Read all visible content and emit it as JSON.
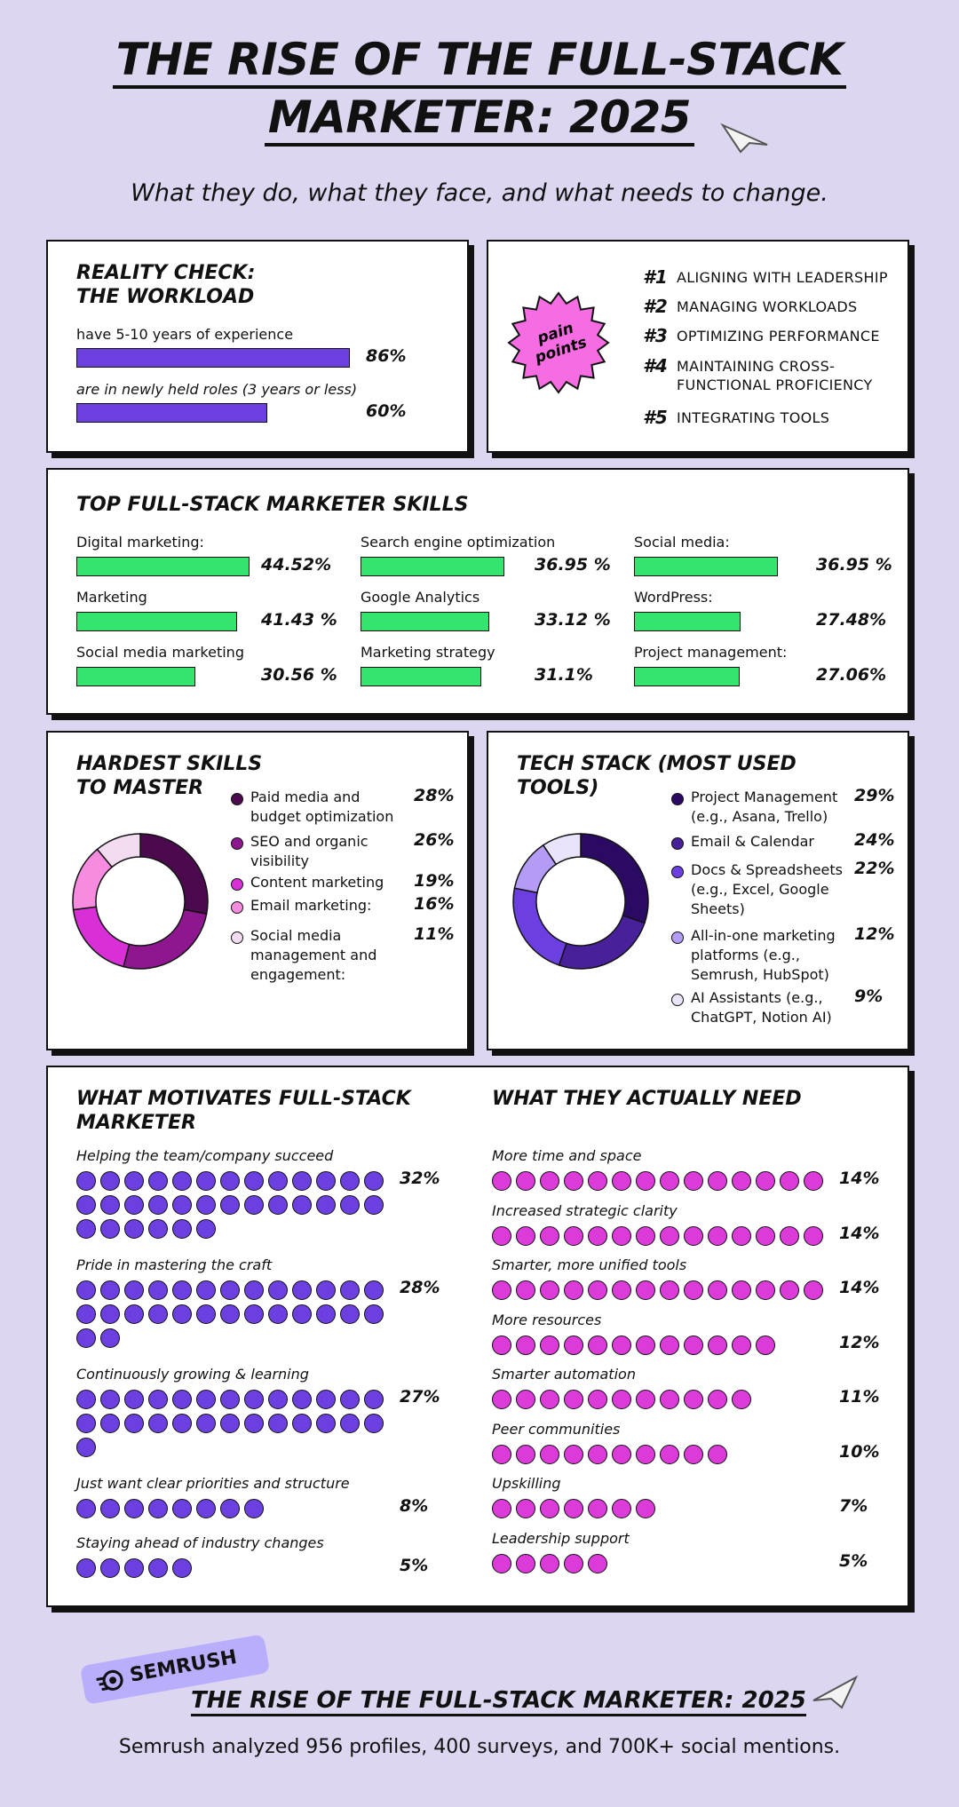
{
  "header": {
    "title_line1": "THE RISE OF THE  FULL-STACK",
    "title_line2": "MARKETER: 2025",
    "subtitle": "What they do, what they face, and what needs to change."
  },
  "workload": {
    "title": "REALITY CHECK:\nTHE WORKLOAD",
    "items": [
      {
        "label": "have 5-10 years of experience",
        "pct": "86%",
        "value": 86
      },
      {
        "label": "are in newly held roles (3 years or less)",
        "pct": "60%",
        "value": 60
      }
    ]
  },
  "pain_points": {
    "badge": "pain points",
    "items": [
      {
        "rank": "#1",
        "text": "ALIGNING WITH LEADERSHIP"
      },
      {
        "rank": "#2",
        "text": "MANAGING WORKLOADS"
      },
      {
        "rank": "#3",
        "text": "OPTIMIZING PERFORMANCE"
      },
      {
        "rank": "#4",
        "text": "MAINTAINING CROSS-\nFUNCTIONAL PROFICIENCY"
      },
      {
        "rank": "#5",
        "text": "INTEGRATING TOOLS"
      }
    ]
  },
  "skills": {
    "title": "TOP FULL-STACK MARKETER SKILLS",
    "items": [
      {
        "label": "Digital marketing:",
        "pct": "44.52%",
        "value": 44.52
      },
      {
        "label": "Search engine optimization",
        "pct": "36.95 %",
        "value": 36.95
      },
      {
        "label": "Social media:",
        "pct": "36.95 %",
        "value": 36.95
      },
      {
        "label": "Marketing",
        "pct": "41.43 %",
        "value": 41.43
      },
      {
        "label": "Google Analytics",
        "pct": "33.12 %",
        "value": 33.12
      },
      {
        "label": "WordPress:",
        "pct": "27.48%",
        "value": 27.48
      },
      {
        "label": "Social media marketing",
        "pct": "30.56 %",
        "value": 30.56
      },
      {
        "label": "Marketing strategy",
        "pct": "31.1%",
        "value": 31.1
      },
      {
        "label": "Project management:",
        "pct": "27.06%",
        "value": 27.06
      }
    ]
  },
  "hardest": {
    "title": "HARDEST SKILLS\nTO MASTER",
    "items": [
      {
        "label": "Paid media and\nbudget optimization",
        "pct": "28%",
        "value": 28,
        "color": "#4a0a4d"
      },
      {
        "label": "SEO and organic\nvisibility",
        "pct": "26%",
        "value": 26,
        "color": "#8e178f"
      },
      {
        "label": "Content marketing",
        "pct": "19%",
        "value": 19,
        "color": "#d92fd6"
      },
      {
        "label": "Email marketing:",
        "pct": "16%",
        "value": 16,
        "color": "#f68bdf"
      },
      {
        "label": "Social media\nmanagement and\nengagement:",
        "pct": "11%",
        "value": 11,
        "color": "#f3dcef"
      }
    ]
  },
  "tech": {
    "title": "TECH STACK (MOST USED\nTOOLS)",
    "items": [
      {
        "label": "Project Management\n(e.g., Asana, Trello)",
        "pct": "29%",
        "value": 29,
        "color": "#2b0a63"
      },
      {
        "label": "Email & Calendar",
        "pct": "24%",
        "value": 24,
        "color": "#47209a"
      },
      {
        "label": "Docs & Spreadsheets\n(e.g., Excel, Google\nSheets)",
        "pct": "22%",
        "value": 22,
        "color": "#6b3fe0"
      },
      {
        "label": "All-in-one marketing\nplatforms (e.g.,\nSemrush, HubSpot)",
        "pct": "12%",
        "value": 12,
        "color": "#b49cf6"
      },
      {
        "label": "AI Assistants (e.g.,\nChatGPT, Notion AI)",
        "pct": "9%",
        "value": 9,
        "color": "#e9e3fb"
      }
    ]
  },
  "motivates": {
    "title": "WHAT MOTIVATES FULL-STACK\nMARKETER",
    "items": [
      {
        "label": "Helping the team/company succeed",
        "pct": "32%",
        "value": 32
      },
      {
        "label": "Pride in mastering the craft",
        "pct": "28%",
        "value": 28
      },
      {
        "label": "Continuously growing & learning",
        "pct": "27%",
        "value": 27
      },
      {
        "label": "Just want clear priorities and structure",
        "pct": "8%",
        "value": 8
      },
      {
        "label": "Staying ahead of industry changes",
        "pct": "5%",
        "value": 5
      }
    ]
  },
  "needs": {
    "title": "WHAT THEY ACTUALLY NEED",
    "items": [
      {
        "label": "More time and space",
        "pct": "14%",
        "value": 14
      },
      {
        "label": "Increased strategic clarity",
        "pct": "14%",
        "value": 14
      },
      {
        "label": "Smarter, more unified tools",
        "pct": "14%",
        "value": 14
      },
      {
        "label": "More resources",
        "pct": "12%",
        "value": 12
      },
      {
        "label": "Smarter automation",
        "pct": "11%",
        "value": 11
      },
      {
        "label": "Peer communities",
        "pct": "10%",
        "value": 10
      },
      {
        "label": "Upskilling",
        "pct": "7%",
        "value": 7
      },
      {
        "label": "Leadership support",
        "pct": "5%",
        "value": 5
      }
    ]
  },
  "footer": {
    "logo": "SEMRUSH",
    "title": "THE RISE OF THE FULL-STACK MARKETER: 2025",
    "note": "Semrush analyzed 956 profiles, 400 surveys, and 700K+ social mentions."
  },
  "colors": {
    "background": "#dcd6f1",
    "purple": "#6b3fe0",
    "green": "#35e36f",
    "magenta": "#dc3ad9"
  }
}
